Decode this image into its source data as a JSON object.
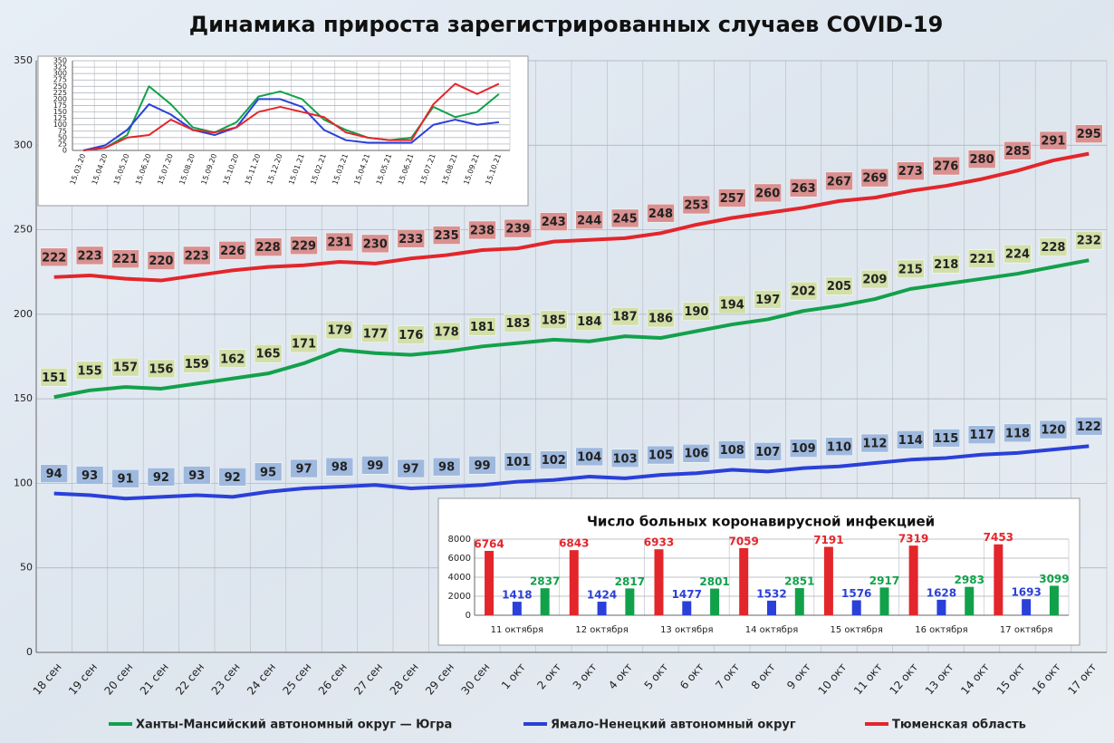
{
  "chart_data": [
    {
      "type": "line",
      "title": "Динамика прироста зарегистрированных случаев COVID-19",
      "categories": [
        "18 сен",
        "19 сен",
        "20 сен",
        "21 сен",
        "22 сен",
        "23 сен",
        "24 сен",
        "25 сен",
        "26 сен",
        "27 сен",
        "28 сен",
        "29 сен",
        "30 сен",
        "1 окт",
        "2 окт",
        "3 окт",
        "4 окт",
        "5 окт",
        "6 окт",
        "7 окт",
        "8 окт",
        "9 окт",
        "10 окт",
        "11 окт",
        "12 окт",
        "13 окт",
        "14 окт",
        "15 окт",
        "16 окт",
        "17 окт"
      ],
      "series": [
        {
          "name": "Ханты-Мансийский автономный округ — Югра",
          "color": "#12a14b",
          "label_color": "#d2dfa8",
          "values": [
            151,
            155,
            157,
            156,
            159,
            162,
            165,
            171,
            179,
            177,
            176,
            178,
            181,
            183,
            185,
            184,
            187,
            186,
            190,
            194,
            197,
            202,
            205,
            209,
            215,
            218,
            221,
            224,
            228,
            232
          ]
        },
        {
          "name": "Ямало-Ненецкий автономный округ",
          "color": "#2a40d8",
          "label_color": "#9fb9de",
          "values": [
            94,
            93,
            91,
            92,
            93,
            92,
            95,
            97,
            98,
            99,
            97,
            98,
            99,
            101,
            102,
            104,
            103,
            105,
            106,
            108,
            107,
            109,
            110,
            112,
            114,
            115,
            117,
            118,
            120,
            122
          ]
        },
        {
          "name": "Тюменская область",
          "color": "#e3262b",
          "label_color": "#d9908f",
          "values": [
            222,
            223,
            221,
            220,
            223,
            226,
            228,
            229,
            231,
            230,
            233,
            235,
            238,
            239,
            243,
            244,
            245,
            248,
            253,
            257,
            260,
            263,
            267,
            269,
            273,
            276,
            280,
            285,
            291,
            295
          ]
        }
      ],
      "ylim": [
        0,
        350
      ],
      "yticks": [
        0,
        50,
        100,
        150,
        200,
        250,
        300,
        350
      ],
      "grid": true,
      "data_labels": true,
      "legend": "bottom"
    },
    {
      "type": "line",
      "categories": [
        "15.03.20",
        "15.04.20",
        "15.05.20",
        "15.06.20",
        "15.07.20",
        "15.08.20",
        "15.09.20",
        "15.10.20",
        "15.11.20",
        "15.12.20",
        "15.01.21",
        "15.02.21",
        "15.03.21",
        "15.04.21",
        "15.05.21",
        "15.06.21",
        "15.07.21",
        "15.08.21",
        "15.09.21",
        "15.10.21"
      ],
      "series": [
        {
          "color": "#12a14b",
          "values": [
            0,
            10,
            60,
            250,
            180,
            90,
            70,
            110,
            210,
            230,
            200,
            120,
            80,
            50,
            40,
            50,
            170,
            130,
            150,
            220
          ]
        },
        {
          "color": "#2a40d8",
          "values": [
            0,
            20,
            80,
            180,
            140,
            80,
            60,
            90,
            200,
            200,
            170,
            80,
            40,
            30,
            30,
            30,
            100,
            120,
            100,
            110
          ]
        },
        {
          "color": "#e3262b",
          "values": [
            0,
            10,
            50,
            60,
            120,
            80,
            70,
            90,
            150,
            170,
            150,
            130,
            70,
            50,
            40,
            40,
            180,
            260,
            220,
            260
          ]
        }
      ],
      "ylim": [
        0,
        350
      ],
      "yticks": [
        0,
        25,
        50,
        75,
        100,
        125,
        150,
        175,
        200,
        225,
        250,
        275,
        300,
        325,
        350
      ],
      "grid": true,
      "data_labels": false
    },
    {
      "type": "bar",
      "title": "Число больных коронавирусной  инфекцией",
      "categories": [
        "11 октября",
        "12 октября",
        "13 октября",
        "14 октября",
        "15 октября",
        "16 октября",
        "17 октября"
      ],
      "series": [
        {
          "color": "#e3262b",
          "values": [
            6764,
            6843,
            6933,
            7059,
            7191,
            7319,
            7453
          ]
        },
        {
          "color": "#2a40d8",
          "values": [
            1418,
            1424,
            1477,
            1532,
            1576,
            1628,
            1693
          ]
        },
        {
          "color": "#12a14b",
          "values": [
            2837,
            2817,
            2801,
            2851,
            2917,
            2983,
            3099
          ]
        }
      ],
      "ylim": [
        0,
        8000
      ],
      "yticks": [
        0,
        2000,
        4000,
        6000,
        8000
      ],
      "grid": true,
      "data_labels": true
    }
  ]
}
